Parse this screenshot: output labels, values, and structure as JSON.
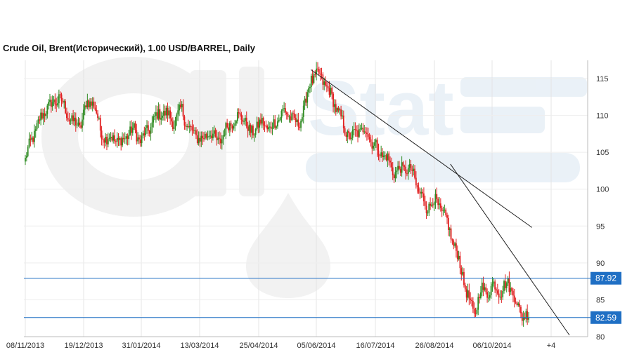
{
  "title": "Crude Oil, Brent(Исторический), 1.00 USD/BARREL, Daily",
  "colors": {
    "up": "#2e8b22",
    "down": "#e02020",
    "level": "#1f6fc4",
    "grid": "#e4e4e4",
    "trend": "#222222"
  },
  "chart_data": {
    "type": "candlestick",
    "title": "Crude Oil, Brent(Исторический), 1.00 USD/BARREL, Daily",
    "ylim": [
      80,
      117
    ],
    "y_ticks": [
      80,
      85,
      90,
      95,
      100,
      105,
      110,
      115
    ],
    "y_axis_side": "right",
    "x_ticks": [
      "08/11/2013",
      "19/12/2013",
      "31/01/2014",
      "13/03/2014",
      "25/04/2014",
      "05/06/2014",
      "16/07/2014",
      "26/08/2014",
      "06/10/2014",
      "+4"
    ],
    "grid": true,
    "levels": [
      {
        "value": 87.92,
        "label": "87.92"
      },
      {
        "value": 82.59,
        "label": "82.59"
      }
    ],
    "close_path": [
      [
        0,
        104.0
      ],
      [
        1,
        107.0
      ],
      [
        2,
        109.0
      ],
      [
        3,
        111.0
      ],
      [
        4,
        111.5
      ],
      [
        5,
        112.5
      ],
      [
        6,
        110.5
      ],
      [
        7,
        109.0
      ],
      [
        8,
        108.5
      ],
      [
        9,
        111.5
      ],
      [
        10,
        112.0
      ],
      [
        11,
        108.0
      ],
      [
        12,
        106.8
      ],
      [
        13,
        107.0
      ],
      [
        14,
        106.2
      ],
      [
        15,
        107.5
      ],
      [
        16,
        108.0
      ],
      [
        17,
        106.5
      ],
      [
        18,
        108.0
      ],
      [
        19,
        109.5
      ],
      [
        20,
        110.5
      ],
      [
        21,
        110.0
      ],
      [
        22,
        109.0
      ],
      [
        23,
        111.0
      ],
      [
        24,
        108.0
      ],
      [
        25,
        107.5
      ],
      [
        26,
        106.5
      ],
      [
        27,
        108.0
      ],
      [
        28,
        106.5
      ],
      [
        29,
        107.0
      ],
      [
        30,
        109.0
      ],
      [
        31,
        109.5
      ],
      [
        32,
        110.0
      ],
      [
        33,
        107.5
      ],
      [
        34,
        108.5
      ],
      [
        35,
        109.0
      ],
      [
        36,
        108.0
      ],
      [
        37,
        109.5
      ],
      [
        38,
        110.5
      ],
      [
        39,
        110.0
      ],
      [
        40,
        108.5
      ],
      [
        41,
        111.0
      ],
      [
        42,
        115.0
      ],
      [
        43,
        115.5
      ],
      [
        44,
        114.5
      ],
      [
        45,
        112.5
      ],
      [
        46,
        110.5
      ],
      [
        47,
        108.0
      ],
      [
        48,
        107.0
      ],
      [
        49,
        108.0
      ],
      [
        50,
        108.0
      ],
      [
        51,
        106.5
      ],
      [
        52,
        105.0
      ],
      [
        53,
        104.5
      ],
      [
        54,
        102.5
      ],
      [
        55,
        102.5
      ],
      [
        56,
        103.0
      ],
      [
        57,
        102.0
      ],
      [
        58,
        99.5
      ],
      [
        59,
        97.5
      ],
      [
        60,
        98.5
      ],
      [
        61,
        97.5
      ],
      [
        62,
        95.5
      ],
      [
        63,
        92.5
      ],
      [
        64,
        89.5
      ],
      [
        65,
        85.5
      ],
      [
        66,
        83.0
      ],
      [
        67,
        86.5
      ],
      [
        68,
        86.0
      ],
      [
        69,
        87.0
      ],
      [
        70,
        86.0
      ],
      [
        71,
        87.5
      ],
      [
        72,
        85.0
      ],
      [
        73,
        83.0
      ],
      [
        74,
        82.6
      ]
    ],
    "trendlines": [
      {
        "from": [
          42,
          116.2
        ],
        "to": [
          74.5,
          94.8
        ]
      },
      {
        "from": [
          62.5,
          103.4
        ],
        "to": [
          80,
          80.2
        ]
      }
    ],
    "watermark": "Oil Stat"
  }
}
